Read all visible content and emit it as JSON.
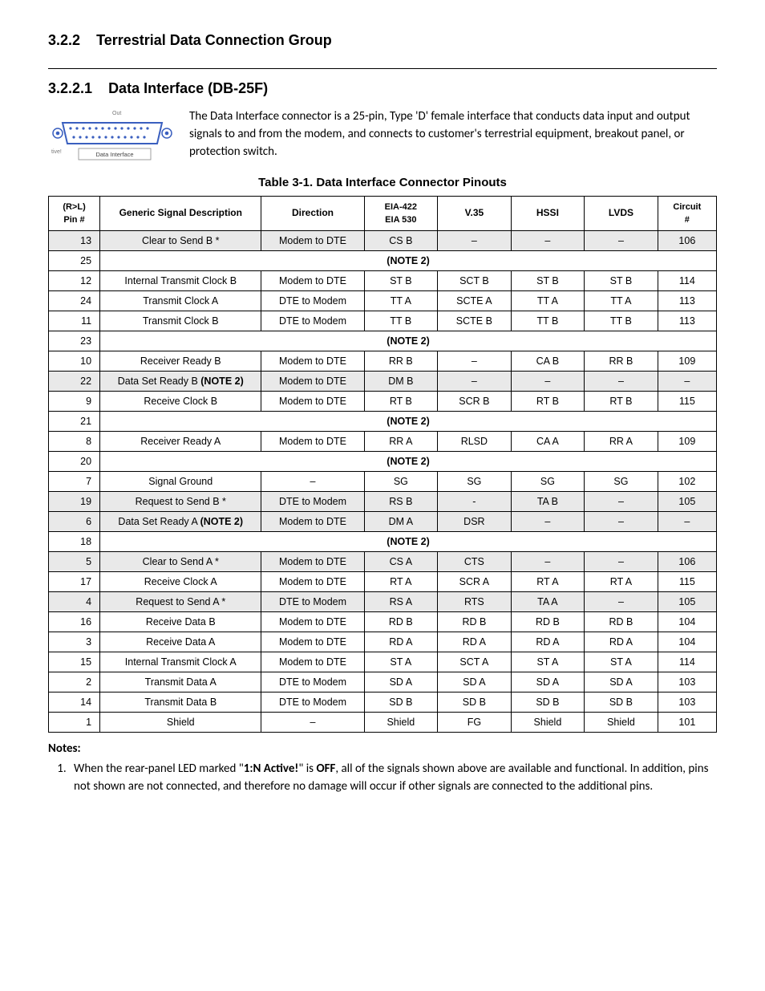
{
  "section": {
    "number": "3.2.2",
    "title": "Terrestrial Data Connection Group"
  },
  "subsection": {
    "number": "3.2.2.1",
    "title": "Data Interface (DB-25F)"
  },
  "intro_text": "The Data Interface connector is a 25-pin, Type 'D' female interface that conducts data input and output signals to and from the modem, and connects to customer's terrestrial equipment, breakout panel, or protection switch.",
  "figure": {
    "top_label_left": "",
    "top_label_right": "Out",
    "left_label": "tive!",
    "bottom_label": "Data Interface",
    "shell_color": "#3a5fbf",
    "label_color": "#666666"
  },
  "table_caption": "Table 3-1.  Data Interface Connector Pinouts",
  "columns": {
    "pin": "(R>L)\nPin #",
    "desc": "Generic Signal Description",
    "dir": "Direction",
    "eia": "EIA-422\nEIA 530",
    "v35": "V.35",
    "hssi": "HSSI",
    "lvds": "LVDS",
    "circ": "Circuit\n#"
  },
  "dash": "–",
  "note2": "(NOTE 2)",
  "rows": [
    {
      "pin": "13",
      "desc": "Clear to Send B *",
      "dir": "Modem to DTE",
      "eia": "CS B",
      "v35": "–",
      "hssi": "–",
      "lvds": "–",
      "circ": "106",
      "shaded": true
    },
    {
      "pin": "25",
      "note": true
    },
    {
      "pin": "12",
      "desc": "Internal Transmit Clock B",
      "dir": "Modem to DTE",
      "eia": "ST B",
      "v35": "SCT B",
      "hssi": "ST B",
      "lvds": "ST B",
      "circ": "114"
    },
    {
      "pin": "24",
      "desc": "Transmit Clock A",
      "dir": "DTE to Modem",
      "eia": "TT A",
      "v35": "SCTE A",
      "hssi": "TT A",
      "lvds": "TT A",
      "circ": "113"
    },
    {
      "pin": "11",
      "desc": "Transmit Clock B",
      "dir": "DTE to Modem",
      "eia": "TT B",
      "v35": "SCTE B",
      "hssi": "TT B",
      "lvds": "TT B",
      "circ": "113"
    },
    {
      "pin": "23",
      "note": true
    },
    {
      "pin": "10",
      "desc": "Receiver Ready B",
      "dir": "Modem to DTE",
      "eia": "RR B",
      "v35": "–",
      "hssi": "CA  B",
      "lvds": "RR B",
      "circ": "109"
    },
    {
      "pin": "22",
      "desc_html": "Data Set Ready B <b>(NOTE 2)</b>",
      "dir": "Modem to DTE",
      "eia": "DM B",
      "v35": "–",
      "hssi": "–",
      "lvds": "–",
      "circ": "–",
      "shaded": true
    },
    {
      "pin": "9",
      "desc": "Receive Clock B",
      "dir": "Modem to DTE",
      "eia": "RT B",
      "v35": "SCR B",
      "hssi": "RT B",
      "lvds": "RT B",
      "circ": "115"
    },
    {
      "pin": "21",
      "note": true
    },
    {
      "pin": "8",
      "desc": "Receiver Ready A",
      "dir": "Modem to DTE",
      "eia": "RR A",
      "v35": "RLSD",
      "hssi": "CA  A",
      "lvds": "RR A",
      "circ": "109"
    },
    {
      "pin": "20",
      "note": true
    },
    {
      "pin": "7",
      "desc": "Signal Ground",
      "dir": "–",
      "eia": "SG",
      "v35": "SG",
      "hssi": "SG",
      "lvds": "SG",
      "circ": "102"
    },
    {
      "pin": "19",
      "desc": "Request to Send B *",
      "dir": "DTE to Modem",
      "eia": "RS B",
      "v35": "-",
      "hssi": "TA B",
      "lvds": "–",
      "circ": "105",
      "shaded": true
    },
    {
      "pin": "6",
      "desc_html": "Data Set Ready A <b>(NOTE 2)</b>",
      "dir": "Modem to DTE",
      "eia": "DM A",
      "v35": "DSR",
      "hssi": "–",
      "lvds": "–",
      "circ": "–",
      "shaded": true
    },
    {
      "pin": "18",
      "note": true
    },
    {
      "pin": "5",
      "desc": "Clear to Send A *",
      "dir": "Modem to DTE",
      "eia": "CS A",
      "v35": "CTS",
      "hssi": "–",
      "lvds": "–",
      "circ": "106",
      "shaded": true
    },
    {
      "pin": "17",
      "desc": "Receive Clock A",
      "dir": "Modem to DTE",
      "eia": "RT A",
      "v35": "SCR A",
      "hssi": "RT A",
      "lvds": "RT A",
      "circ": "115"
    },
    {
      "pin": "4",
      "desc": "Request to Send A *",
      "dir": "DTE to Modem",
      "eia": "RS A",
      "v35": "RTS",
      "hssi": "TA A",
      "lvds": "–",
      "circ": "105",
      "shaded": true
    },
    {
      "pin": "16",
      "desc": "Receive Data B",
      "dir": "Modem to DTE",
      "eia": "RD B",
      "v35": "RD B",
      "hssi": "RD B",
      "lvds": "RD B",
      "circ": "104"
    },
    {
      "pin": "3",
      "desc": "Receive Data A",
      "dir": "Modem to DTE",
      "eia": "RD A",
      "v35": "RD A",
      "hssi": "RD A",
      "lvds": "RD A",
      "circ": "104"
    },
    {
      "pin": "15",
      "desc": "Internal Transmit Clock A",
      "dir": "Modem to DTE",
      "eia": "ST A",
      "v35": "SCT A",
      "hssi": "ST A",
      "lvds": "ST A",
      "circ": "114"
    },
    {
      "pin": "2",
      "desc": "Transmit Data A",
      "dir": "DTE to Modem",
      "eia": "SD A",
      "v35": "SD A",
      "hssi": "SD A",
      "lvds": "SD A",
      "circ": "103"
    },
    {
      "pin": "14",
      "desc": "Transmit Data B",
      "dir": "DTE to Modem",
      "eia": "SD B",
      "v35": "SD B",
      "hssi": "SD B",
      "lvds": "SD B",
      "circ": "103"
    },
    {
      "pin": "1",
      "desc": "Shield",
      "dir": "–",
      "eia": "Shield",
      "v35": "FG",
      "hssi": "Shield",
      "lvds": "Shield",
      "circ": "101"
    }
  ],
  "notes": {
    "heading": "Notes:",
    "item1_pre": "When the rear-panel LED marked \"",
    "item1_bold1": "1:N Active!",
    "item1_mid": "\" is ",
    "item1_bold2": "OFF",
    "item1_post": ", all of the signals shown above are available and functional. In addition, pins not shown are not connected, and therefore no damage will occur if other signals are connected to the additional pins."
  }
}
